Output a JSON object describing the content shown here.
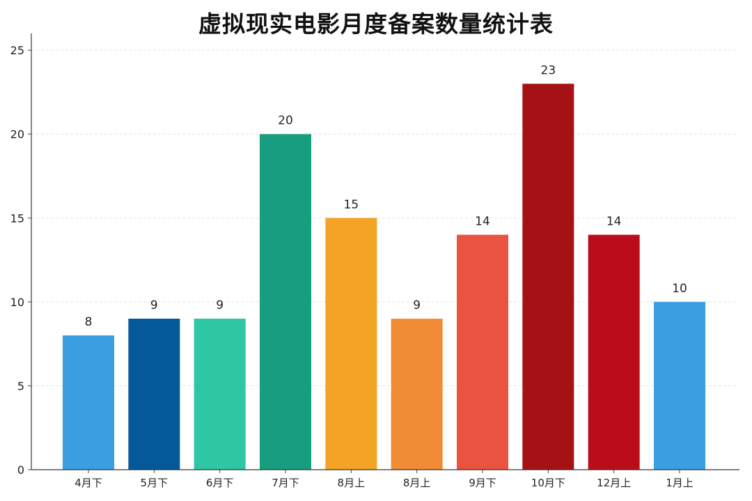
{
  "chart_data": {
    "type": "bar",
    "title": "虚拟现实电影月度备案数量统计表",
    "xlabel": "",
    "ylabel": "",
    "categories": [
      "4月下",
      "5月下",
      "6月下",
      "7月下",
      "8月上",
      "8月上",
      "9月下",
      "10月下",
      "12月上",
      "1月上"
    ],
    "values": [
      8,
      9,
      9,
      20,
      15,
      9,
      14,
      23,
      14,
      10
    ],
    "colors": [
      "#3a9fe0",
      "#04599a",
      "#2ec7a3",
      "#179e7e",
      "#f5a324",
      "#f08c35",
      "#e9533f",
      "#a51114",
      "#b90d1a",
      "#3a9fe0"
    ],
    "ylim": [
      0,
      26
    ],
    "yticks": [
      0,
      5,
      10,
      15,
      20,
      25
    ],
    "grid": true,
    "legend": "none",
    "data_labels": true
  }
}
